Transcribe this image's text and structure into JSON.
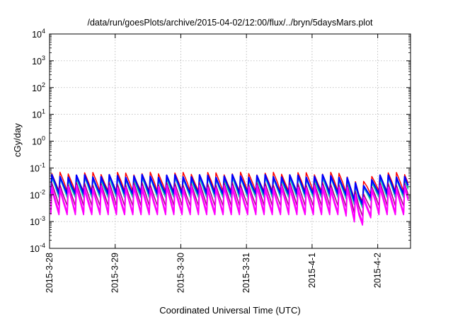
{
  "chart_data": {
    "type": "line",
    "title": "/data/run/goesPlots/archive/2015-04-02/12:00/flux/../bryn/5daysMars.plot",
    "xlabel": "Coordinated Universal Time (UTC)",
    "ylabel": "cGy/day",
    "yscale": "log",
    "ylim": [
      0.0001,
      10000
    ],
    "xlim": [
      "2015-03-28 00:00",
      "2015-04-02 12:00"
    ],
    "x_ticks": [
      "2015-3-28",
      "2015-3-29",
      "2015-3-30",
      "2015-3-31",
      "2015-4-1",
      "2015-4-2"
    ],
    "y_ticks": [
      {
        "base": "10",
        "exp": "-4"
      },
      {
        "base": "10",
        "exp": "-3"
      },
      {
        "base": "10",
        "exp": "-2"
      },
      {
        "base": "10",
        "exp": "-1"
      },
      {
        "base": "10",
        "exp": "0"
      },
      {
        "base": "10",
        "exp": "1"
      },
      {
        "base": "10",
        "exp": "2"
      },
      {
        "base": "10",
        "exp": "3"
      },
      {
        "base": "10",
        "exp": "4"
      }
    ],
    "grid": true,
    "legend": "none",
    "cycles_per_day": 8,
    "dip": {
      "x": "2015-04-01 17:30",
      "min_factor": 0.3
    },
    "series": [
      {
        "color": "#ff0000",
        "peak": 0.062,
        "trough": 0.014,
        "width": 1.5
      },
      {
        "color": "#00a000",
        "peak": 0.045,
        "trough": 0.0095,
        "width": 1.5
      },
      {
        "color": "#00c0c0",
        "peak": 0.04,
        "trough": 0.008,
        "width": 1.5
      },
      {
        "color": "#0000ff",
        "peak": 0.05,
        "trough": 0.011,
        "width": 2.2
      },
      {
        "color": "#a00080",
        "peak": 0.026,
        "trough": 0.004,
        "width": 1.5
      },
      {
        "color": "#ff00ff",
        "peak": 0.02,
        "trough": 0.0022,
        "width": 2.0
      },
      {
        "color": "#ff00ff",
        "peak": 0.016,
        "trough": 0.0018,
        "width": 1.5
      }
    ]
  }
}
